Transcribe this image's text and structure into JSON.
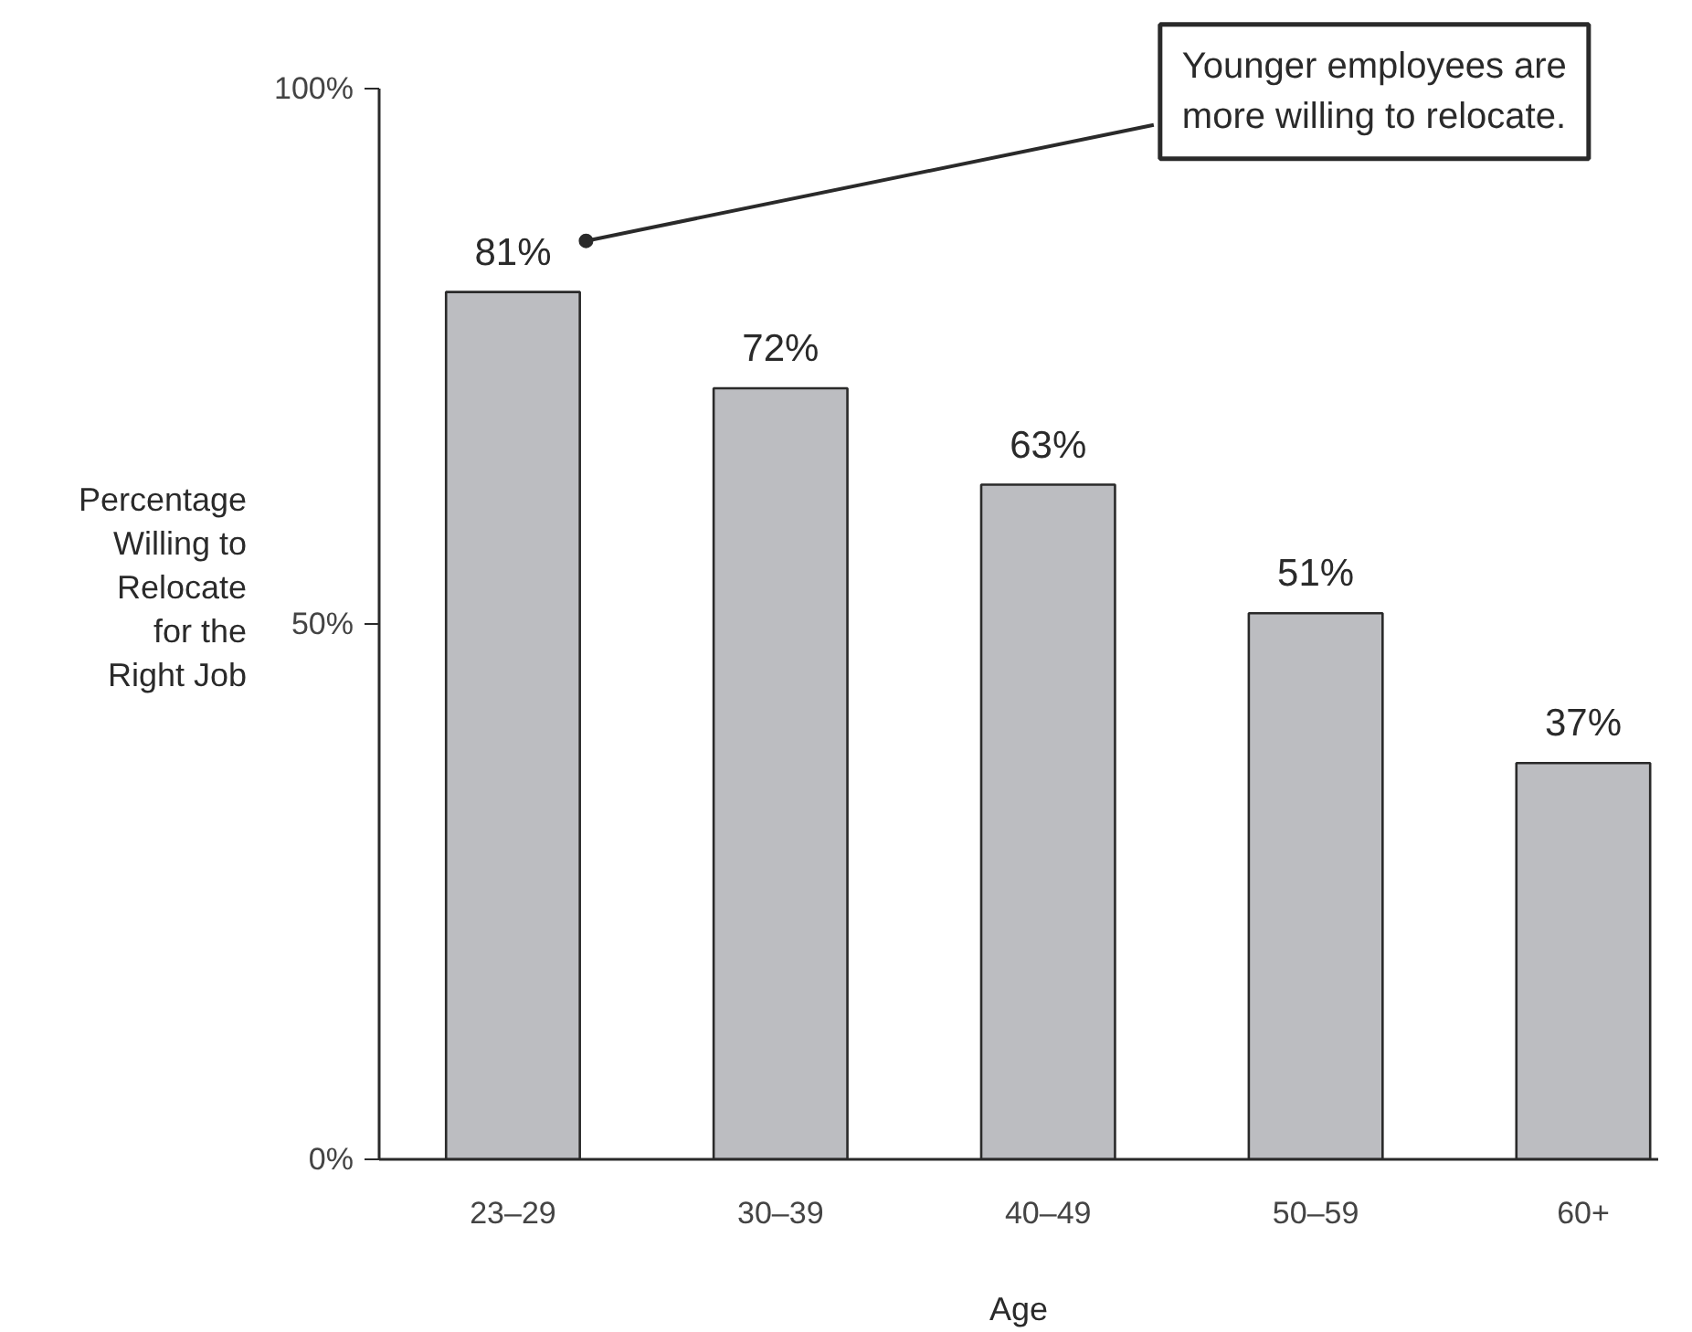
{
  "chart_data": {
    "type": "bar",
    "categories": [
      "23–29",
      "30–39",
      "40–49",
      "50–59",
      "60+"
    ],
    "values": [
      81,
      72,
      63,
      51,
      37
    ],
    "value_labels": [
      "81%",
      "72%",
      "63%",
      "51%",
      "37%"
    ],
    "color": "#bcbdc1",
    "ylim": [
      0,
      100
    ],
    "yticks": [
      {
        "value": 0,
        "label": "0%"
      },
      {
        "value": 50,
        "label": "50%"
      },
      {
        "value": 100,
        "label": "100%"
      }
    ],
    "xlabel": "Age",
    "ylabel": "Percentage Willing to Relocate for the Right Job",
    "annotations": [
      "Younger employees are more willing to relocate."
    ],
    "grid": false
  }
}
